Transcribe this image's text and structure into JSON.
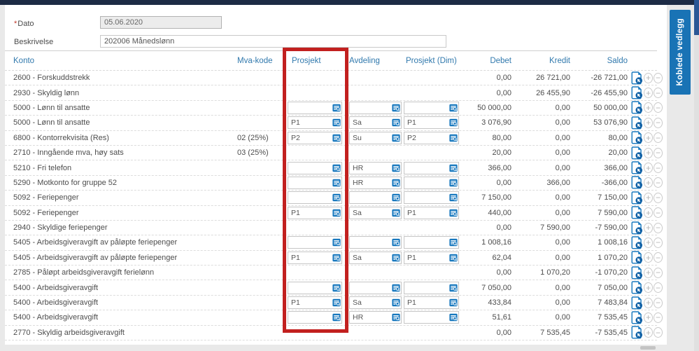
{
  "form": {
    "dato_required_mark": "*",
    "dato_label": "Dato",
    "dato_value": "05.06.2020",
    "beskrivelse_label": "Beskrivelse",
    "beskrivelse_value": "202006 Månedslønn"
  },
  "side_tab": {
    "label": "Koblede vedlegg"
  },
  "table": {
    "columns": {
      "konto": "Konto",
      "mva": "Mva-kode",
      "prosjekt": "Prosjekt",
      "avdeling": "Avdeling",
      "dim": "Prosjekt (Dim)",
      "debet": "Debet",
      "kredit": "Kredit",
      "saldo": "Saldo"
    },
    "rows": [
      {
        "konto": "2600 - Forskuddstrekk",
        "mva": "",
        "prosjekt": null,
        "avdeling": null,
        "dim": null,
        "debet": "0,00",
        "kredit": "26 721,00",
        "saldo": "-26 721,00"
      },
      {
        "konto": "2930 - Skyldig lønn",
        "mva": "",
        "prosjekt": null,
        "avdeling": null,
        "dim": null,
        "debet": "0,00",
        "kredit": "26 455,90",
        "saldo": "-26 455,90"
      },
      {
        "konto": "5000 - Lønn til ansatte",
        "mva": "",
        "prosjekt": "",
        "avdeling": "",
        "dim": "",
        "debet": "50 000,00",
        "kredit": "0,00",
        "saldo": "50 000,00"
      },
      {
        "konto": "5000 - Lønn til ansatte",
        "mva": "",
        "prosjekt": "P1",
        "avdeling": "Sa",
        "dim": "P1",
        "debet": "3 076,90",
        "kredit": "0,00",
        "saldo": "53 076,90"
      },
      {
        "konto": "6800 - Kontorrekvisita (Res)",
        "mva": "02 (25%)",
        "prosjekt": "P2",
        "avdeling": "Su",
        "dim": "P2",
        "debet": "80,00",
        "kredit": "0,00",
        "saldo": "80,00"
      },
      {
        "konto": "2710 - Inngående mva, høy sats",
        "mva": "03 (25%)",
        "prosjekt": null,
        "avdeling": null,
        "dim": null,
        "debet": "20,00",
        "kredit": "0,00",
        "saldo": "20,00"
      },
      {
        "konto": "5210 - Fri telefon",
        "mva": "",
        "prosjekt": "",
        "avdeling": "HR",
        "dim": "",
        "debet": "366,00",
        "kredit": "0,00",
        "saldo": "366,00"
      },
      {
        "konto": "5290 - Motkonto for gruppe 52",
        "mva": "",
        "prosjekt": "",
        "avdeling": "HR",
        "dim": "",
        "debet": "0,00",
        "kredit": "366,00",
        "saldo": "-366,00"
      },
      {
        "konto": "5092 - Feriepenger",
        "mva": "",
        "prosjekt": "",
        "avdeling": "",
        "dim": "",
        "debet": "7 150,00",
        "kredit": "0,00",
        "saldo": "7 150,00"
      },
      {
        "konto": "5092 - Feriepenger",
        "mva": "",
        "prosjekt": "P1",
        "avdeling": "Sa",
        "dim": "P1",
        "debet": "440,00",
        "kredit": "0,00",
        "saldo": "7 590,00"
      },
      {
        "konto": "2940 - Skyldige feriepenger",
        "mva": "",
        "prosjekt": null,
        "avdeling": null,
        "dim": null,
        "debet": "0,00",
        "kredit": "7 590,00",
        "saldo": "-7 590,00"
      },
      {
        "konto": "5405 - Arbeidsgiveravgift av påløpte feriepenger",
        "mva": "",
        "prosjekt": "",
        "avdeling": "",
        "dim": "",
        "debet": "1 008,16",
        "kredit": "0,00",
        "saldo": "1 008,16"
      },
      {
        "konto": "5405 - Arbeidsgiveravgift av påløpte feriepenger",
        "mva": "",
        "prosjekt": "P1",
        "avdeling": "Sa",
        "dim": "P1",
        "debet": "62,04",
        "kredit": "0,00",
        "saldo": "1 070,20"
      },
      {
        "konto": "2785 - Påløpt arbeidsgiveravgift ferielønn",
        "mva": "",
        "prosjekt": null,
        "avdeling": null,
        "dim": null,
        "debet": "0,00",
        "kredit": "1 070,20",
        "saldo": "-1 070,20"
      },
      {
        "konto": "5400 - Arbeidsgiveravgift",
        "mva": "",
        "prosjekt": "",
        "avdeling": "",
        "dim": "",
        "debet": "7 050,00",
        "kredit": "0,00",
        "saldo": "7 050,00"
      },
      {
        "konto": "5400 - Arbeidsgiveravgift",
        "mva": "",
        "prosjekt": "P1",
        "avdeling": "Sa",
        "dim": "P1",
        "debet": "433,84",
        "kredit": "0,00",
        "saldo": "7 483,84"
      },
      {
        "konto": "5400 - Arbeidsgiveravgift",
        "mva": "",
        "prosjekt": "",
        "avdeling": "HR",
        "dim": "",
        "debet": "51,61",
        "kredit": "0,00",
        "saldo": "7 535,45"
      },
      {
        "konto": "2770 - Skyldig arbeidsgiveravgift",
        "mva": "",
        "prosjekt": null,
        "avdeling": null,
        "dim": null,
        "debet": "0,00",
        "kredit": "7 535,45",
        "saldo": "-7 535,45"
      }
    ]
  },
  "icons": {
    "lookup": "lookup-icon",
    "attachment": "attachment-link-icon",
    "add": "plus-icon",
    "remove": "minus-icon"
  },
  "colors": {
    "accent_blue": "#1878be",
    "header_text": "#3179ad",
    "highlight_red": "#c2201f",
    "tab_blue": "#1973b5",
    "topbar_navy": "#1d2b45"
  }
}
